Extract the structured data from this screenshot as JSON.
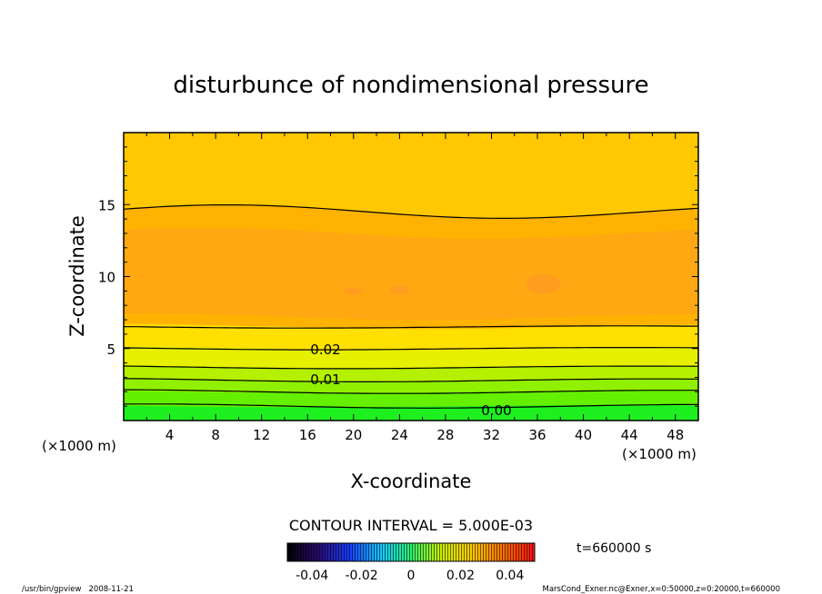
{
  "chart_data": {
    "type": "contour",
    "title": "disturbunce of nondimensional pressure",
    "xlabel": "X-coordinate",
    "ylabel": "Z-coordinate",
    "x_unit_label": "(×1000 m)",
    "y_unit_label": "(×1000 m)",
    "xlim": [
      0,
      50
    ],
    "ylim": [
      0,
      20
    ],
    "x_ticks": [
      "4",
      "8",
      "12",
      "16",
      "20",
      "24",
      "28",
      "32",
      "36",
      "40",
      "44",
      "48"
    ],
    "y_ticks": [
      "5",
      "10",
      "15"
    ],
    "contour_interval_text": "CONTOUR INTERVAL = 5.000E-03",
    "contour_labels": [
      "0.02",
      "0.01",
      "0.00"
    ],
    "colorbar_ticks": [
      "-0.04",
      "-0.02",
      "0",
      "0.02",
      "0.04"
    ],
    "colorbar_range": [
      -0.05,
      0.05
    ],
    "time_text": "t=660000 s",
    "contour_lines": [
      {
        "level": 0.0,
        "label": "0.00",
        "z": 1.0
      },
      {
        "level": 0.005,
        "label": "",
        "z": 2.0
      },
      {
        "level": 0.01,
        "label": "0.01",
        "z": 2.8
      },
      {
        "level": 0.015,
        "label": "",
        "z": 3.7
      },
      {
        "level": 0.02,
        "label": "0.02",
        "z": 5.0
      },
      {
        "level": 0.025,
        "label": "",
        "z": 6.5
      },
      {
        "level": 0.025,
        "label": "",
        "z": 14.5
      }
    ]
  },
  "footer": {
    "left": "/usr/bin/gpview   2008-11-21",
    "right": "MarsCond_Exner.nc@Exner,x=0:50000,z=0:20000,t=660000"
  },
  "colors": {
    "orange_core": "#ff9e1e",
    "orange": "#ffb200",
    "yellow_orange": "#ffc800",
    "yellow": "#ffe000",
    "yellow_green": "#e6f000",
    "green_light": "#b4f000",
    "green": "#64f000",
    "green_dark": "#1ef020"
  }
}
